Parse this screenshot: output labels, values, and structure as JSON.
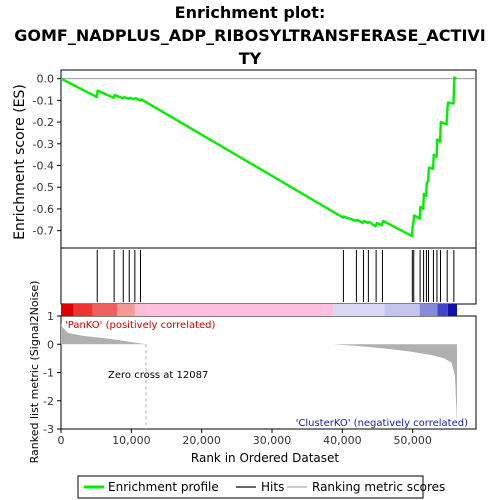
{
  "chart_data": {
    "type": "line",
    "title_lines": [
      "Enrichment plot:",
      "GOMF_NADPLUS_ADP_RIBOSYLTRANSFERASE_ACTIVI",
      "TY"
    ],
    "panels": {
      "es": {
        "ylabel": "Enrichment score (ES)",
        "ylim": [
          -0.78,
          0.04
        ],
        "yticks": [
          0.0,
          -0.1,
          -0.2,
          -0.3,
          -0.4,
          -0.5,
          -0.6,
          -0.7
        ],
        "ytick_labels": [
          "0.0",
          "-0.1",
          "-0.2",
          "-0.3",
          "-0.4",
          "-0.5",
          "-0.6",
          "-0.7"
        ],
        "series": [
          {
            "name": "Enrichment profile",
            "color": "#00ee00",
            "x": [
              0,
              5100,
              5200,
              7500,
              7600,
              8800,
              9000,
              9600,
              9800,
              10400,
              10600,
              11200,
              11400,
              40100,
              40200,
              41900,
              42100,
              42900,
              43100,
              43600,
              43800,
              44700,
              44900,
              45600,
              45800,
              49900,
              50000,
              50100,
              50200,
              51000,
              51100,
              51500,
              51600,
              51900,
              52000,
              52200,
              52300,
              52900,
              53000,
              53400,
              53500,
              53900,
              54000,
              54800,
              55000,
              55800,
              55900,
              56200
            ],
            "y": [
              0.0,
              -0.085,
              -0.055,
              -0.088,
              -0.075,
              -0.09,
              -0.085,
              -0.092,
              -0.088,
              -0.095,
              -0.09,
              -0.1,
              -0.095,
              -0.64,
              -0.635,
              -0.655,
              -0.65,
              -0.665,
              -0.655,
              -0.665,
              -0.66,
              -0.68,
              -0.665,
              -0.675,
              -0.655,
              -0.725,
              -0.68,
              -0.665,
              -0.63,
              -0.645,
              -0.59,
              -0.6,
              -0.53,
              -0.54,
              -0.48,
              -0.47,
              -0.41,
              -0.415,
              -0.35,
              -0.36,
              -0.28,
              -0.29,
              -0.2,
              -0.21,
              -0.11,
              -0.115,
              0.005,
              0.0
            ]
          }
        ]
      },
      "hits": {
        "name": "Hits",
        "color": "#000000",
        "positions": [
          5150,
          7550,
          8850,
          9700,
          10500,
          11300,
          40150,
          42000,
          43000,
          43700,
          44800,
          45700,
          49950,
          50150,
          51050,
          51550,
          51950,
          52250,
          52950,
          53450,
          53950,
          54900,
          55850
        ]
      },
      "ranking": {
        "name": "Ranking metric scores",
        "color": "#b0b0b0",
        "ylabel": "Ranked list metric (Signal2Noise)",
        "ylim": [
          -3,
          1
        ],
        "yticks": [
          1,
          0,
          -1,
          -2,
          -3
        ],
        "ytick_labels": [
          "1",
          "0",
          "-1",
          "-2",
          "-3"
        ],
        "curve_x": [
          0,
          200,
          1000,
          3000,
          6000,
          9000,
          12087,
          20000,
          38700,
          42000,
          46000,
          50000,
          53000,
          54500,
          55500,
          56000,
          56200,
          56300
        ],
        "curve_y": [
          0.75,
          0.6,
          0.4,
          0.3,
          0.22,
          0.12,
          0.0,
          0.0,
          0.0,
          -0.06,
          -0.15,
          -0.27,
          -0.4,
          -0.5,
          -0.65,
          -1.1,
          -2.2,
          -2.9
        ],
        "zero_cross": 12087,
        "zero_cross_label": "Zero cross at 12087",
        "pos_label": "'PanKO' (positively correlated)",
        "neg_label": "'ClusterKO' (negatively correlated)"
      }
    },
    "xlabel": "Rank in Ordered Dataset",
    "xlim": [
      0,
      59000
    ],
    "xticks": [
      0,
      10000,
      20000,
      30000,
      40000,
      50000
    ],
    "xtick_labels": [
      "0",
      "10,000",
      "20,000",
      "30,000",
      "40,000",
      "50,000"
    ],
    "legend": {
      "placement": "bottom",
      "entries": [
        "Enrichment profile",
        "Hits",
        "Ranking metric scores"
      ]
    }
  }
}
